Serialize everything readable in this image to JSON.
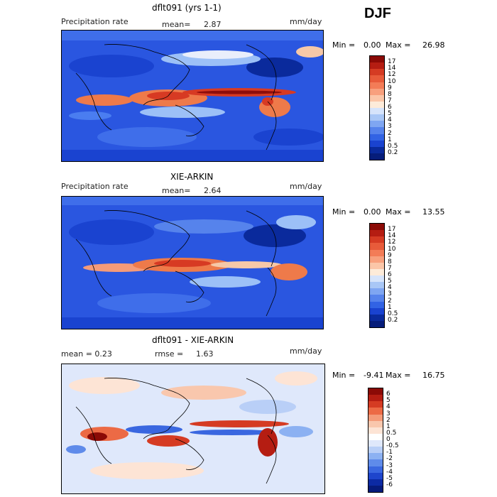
{
  "season": "DJF",
  "colors": {
    "bg_blue": "#2a56e0",
    "deep_blue": "#0b2fb3",
    "mid_blue": "#4a7df0",
    "light_blue": "#9cc0f7",
    "pale": "#e9eefb",
    "peach": "#f6c8a8",
    "orange": "#ee7a4a",
    "red": "#d73a23",
    "dark_red": "#8e0d0b"
  },
  "panels": [
    {
      "title": "dflt091 (yrs 1-1)",
      "left_label": "Precipitation rate",
      "mean_label": "mean=",
      "mean_value": "2.87",
      "units": "mm/day",
      "min_label": "Min =",
      "min_value": "0.00",
      "max_label": "Max =",
      "max_value": "26.98",
      "colorbar_levels": [
        "17",
        "14",
        "12",
        "10",
        "9",
        "8",
        "7",
        "6",
        "5",
        "4",
        "3",
        "2",
        "1",
        "0.5",
        "0.2"
      ]
    },
    {
      "title": "XIE-ARKIN",
      "left_label": "Precipitation rate",
      "mean_label": "mean=",
      "mean_value": "2.64",
      "units": "mm/day",
      "min_label": "Min =",
      "min_value": "0.00",
      "max_label": "Max =",
      "max_value": "13.55",
      "colorbar_levels": [
        "17",
        "14",
        "12",
        "10",
        "9",
        "8",
        "7",
        "6",
        "5",
        "4",
        "3",
        "2",
        "1",
        "0.5",
        "0.2"
      ]
    },
    {
      "title": "dflt091 - XIE-ARKIN",
      "left_label": "mean =   0.23",
      "mean_label": "rmse =",
      "mean_value": "1.63",
      "units": "mm/day",
      "min_label": "Min =",
      "min_value": "-9.41",
      "max_label": "Max =",
      "max_value": "16.75",
      "colorbar_levels": [
        "6",
        "5",
        "4",
        "3",
        "2",
        "1",
        "0.5",
        "0",
        "-0.5",
        "-1",
        "-2",
        "-3",
        "-4",
        "-5",
        "-6"
      ]
    }
  ],
  "colorbar_colors_precip": [
    "#8b0a06",
    "#b51d12",
    "#d53b23",
    "#e85b3a",
    "#f37c57",
    "#f8a07d",
    "#fbc6a8",
    "#fdebd9",
    "#d6e4fb",
    "#a9c7f6",
    "#7fa6f2",
    "#5683ec",
    "#3263e4",
    "#1a43d0",
    "#0a2a9c",
    "#061d7a"
  ],
  "colorbar_colors_diff": [
    "#8b0a06",
    "#b51d12",
    "#d53b23",
    "#ec6a45",
    "#f49b79",
    "#f9c7ad",
    "#fde4d5",
    "#ffffff",
    "#dfe8fb",
    "#b9cff7",
    "#8cb1f2",
    "#5f8bea",
    "#3a67e0",
    "#1e45cc",
    "#0c2aa4",
    "#061b7b"
  ]
}
